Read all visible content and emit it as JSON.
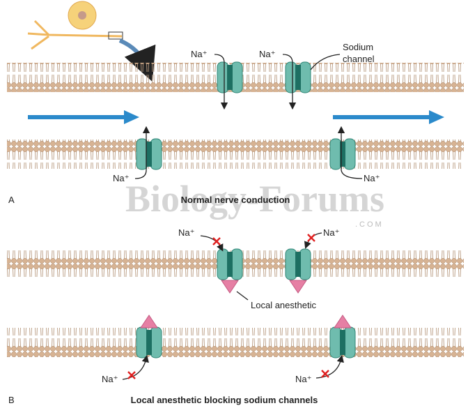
{
  "panel_a": {
    "label": "A",
    "caption": "Normal nerve conduction",
    "sodium_labels": [
      "Na⁺",
      "Na⁺",
      "Na⁺",
      "Na⁺"
    ],
    "channel_label": [
      "Sodium",
      "channel"
    ]
  },
  "panel_b": {
    "label": "B",
    "caption": "Local anesthetic blocking sodium channels",
    "sodium_labels": [
      "Na⁺",
      "Na⁺",
      "Na⁺",
      "Na⁺"
    ],
    "anesthetic_label": "Local anesthetic"
  },
  "watermark": {
    "text": "Biology-Forums",
    "domain": ".COM"
  }
}
